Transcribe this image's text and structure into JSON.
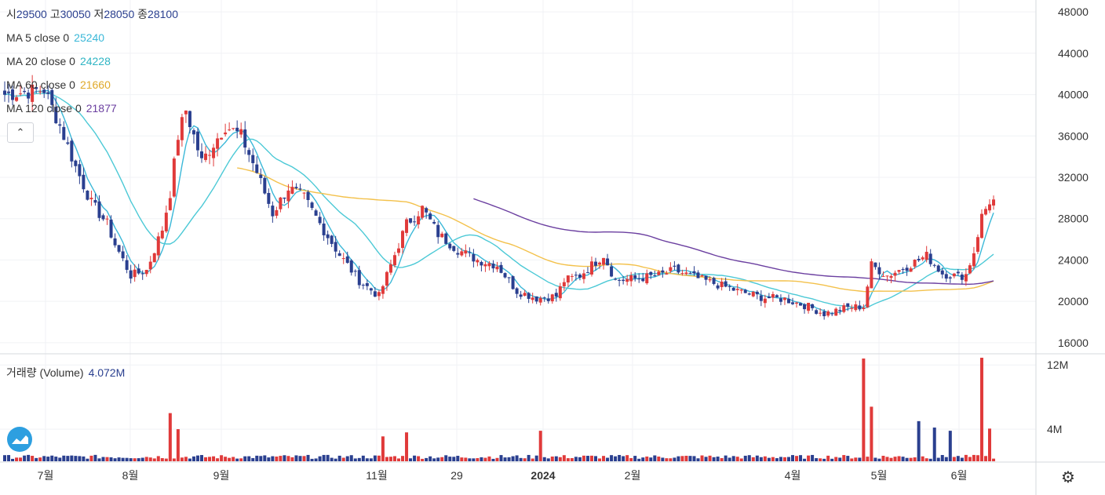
{
  "header": {
    "open_label": "시",
    "open": "29500",
    "high_label": "고",
    "high": "30050",
    "low_label": "저",
    "low": "28050",
    "close_label": "종",
    "close": "28100"
  },
  "indicators": [
    {
      "label": "MA 5 close 0",
      "value": "25240",
      "color": "#3bb8d8"
    },
    {
      "label": "MA 20 close 0",
      "value": "24228",
      "color": "#4cc9d6"
    },
    {
      "label": "MA 60 close 0",
      "value": "21660",
      "color": "#f3c14b"
    },
    {
      "label": "MA 120 close 0",
      "value": "21877",
      "color": "#6b3fa0"
    }
  ],
  "collapse_icon": "chevron-up-icon",
  "volume_legend": {
    "label": "거래량 (Volume)",
    "value": "4.072M"
  },
  "settings_icon": "gear-icon",
  "logo_icon": "tradingview-logo-icon",
  "colors": {
    "up": "#e03a3a",
    "down": "#2a3f8f",
    "grid": "#f0f2f5"
  },
  "chart_data": {
    "type": "candlestick",
    "price_axis": {
      "ticks": [
        "48000",
        "44000",
        "40000",
        "36000",
        "32000",
        "28000",
        "24000",
        "20000",
        "16000"
      ],
      "range": [
        15000,
        49000
      ]
    },
    "volume_axis": {
      "ticks": [
        "12M",
        "4M"
      ],
      "range": [
        0,
        13000000
      ]
    },
    "time_axis": [
      "7월",
      "8월",
      "9월",
      "11월",
      "29",
      "2024",
      "2월",
      "4월",
      "5월",
      "6월"
    ],
    "anchors": [
      [
        0,
        40000
      ],
      [
        10,
        40500
      ],
      [
        14,
        37000
      ],
      [
        18,
        33000
      ],
      [
        22,
        29500
      ],
      [
        26,
        27500
      ],
      [
        28,
        25500
      ],
      [
        32,
        22500
      ],
      [
        36,
        23000
      ],
      [
        40,
        27000
      ],
      [
        42,
        30500
      ],
      [
        44,
        36000
      ],
      [
        46,
        38500
      ],
      [
        50,
        33500
      ],
      [
        56,
        37000
      ],
      [
        60,
        36000
      ],
      [
        64,
        32500
      ],
      [
        68,
        28500
      ],
      [
        72,
        31000
      ],
      [
        76,
        30000
      ],
      [
        80,
        27500
      ],
      [
        85,
        24500
      ],
      [
        90,
        22000
      ],
      [
        95,
        20500
      ],
      [
        98,
        23500
      ],
      [
        102,
        27500
      ],
      [
        106,
        29000
      ],
      [
        110,
        26500
      ],
      [
        115,
        25000
      ],
      [
        120,
        24000
      ],
      [
        125,
        23500
      ],
      [
        130,
        21000
      ],
      [
        135,
        20300
      ],
      [
        140,
        20500
      ],
      [
        142,
        22000
      ],
      [
        146,
        22500
      ],
      [
        152,
        24500
      ],
      [
        155,
        22000
      ],
      [
        160,
        22200
      ],
      [
        166,
        22500
      ],
      [
        170,
        23000
      ],
      [
        176,
        22200
      ],
      [
        182,
        21500
      ],
      [
        186,
        21000
      ],
      [
        192,
        20400
      ],
      [
        198,
        20200
      ],
      [
        204,
        19500
      ],
      [
        208,
        18800
      ],
      [
        214,
        19400
      ],
      [
        218,
        19500
      ],
      [
        220,
        23500
      ],
      [
        224,
        22500
      ],
      [
        228,
        23200
      ],
      [
        234,
        24400
      ],
      [
        238,
        22700
      ],
      [
        242,
        22400
      ],
      [
        244,
        22600
      ],
      [
        246,
        24800
      ],
      [
        248,
        28200
      ],
      [
        250,
        29700
      ]
    ],
    "seed": 7,
    "volume_spikes": [
      [
        42,
        6000000
      ],
      [
        44,
        4000000
      ],
      [
        96,
        3100000
      ],
      [
        102,
        3600000
      ],
      [
        136,
        3800000
      ],
      [
        218,
        12800000
      ],
      [
        220,
        6800000
      ],
      [
        232,
        5000000
      ],
      [
        236,
        4200000
      ],
      [
        240,
        3800000
      ],
      [
        248,
        12900000
      ],
      [
        250,
        4072000
      ]
    ],
    "ma_periods": [
      5,
      20,
      60,
      120
    ]
  }
}
